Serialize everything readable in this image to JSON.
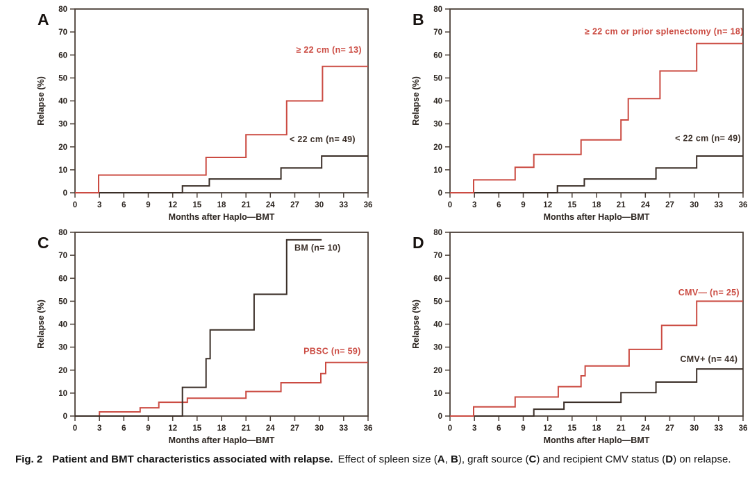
{
  "figure": {
    "background": "#ffffff"
  },
  "colors": {
    "red": "#cb4b42",
    "dark": "#3a2e27",
    "axis": "#4a3f37",
    "text": "#2a231e"
  },
  "caption": {
    "fig_label": "Fig. 2",
    "title": "Patient and BMT characteristics associated with relapse.",
    "segments": [
      {
        "text": "Effect of spleen size (",
        "bold": false
      },
      {
        "text": "A",
        "bold": true
      },
      {
        "text": ", ",
        "bold": false
      },
      {
        "text": "B",
        "bold": true
      },
      {
        "text": "), graft source (",
        "bold": false
      },
      {
        "text": "C",
        "bold": true
      },
      {
        "text": ") and recipient CMV status (",
        "bold": false
      },
      {
        "text": "D",
        "bold": true
      },
      {
        "text": ") on relapse.",
        "bold": false
      }
    ]
  },
  "chart_data": [
    {
      "panel_label": "A",
      "type": "line",
      "subtype": "step",
      "title": "",
      "xlabel": "Months after Haplo—BMT",
      "ylabel": "Relapse (%)",
      "xlim": [
        0,
        36
      ],
      "ylim": [
        0,
        80
      ],
      "xticks": [
        0,
        3,
        6,
        9,
        12,
        15,
        18,
        21,
        24,
        27,
        30,
        33,
        36
      ],
      "yticks": [
        0,
        10,
        20,
        30,
        40,
        50,
        60,
        70,
        80
      ],
      "grid": false,
      "series": [
        {
          "name": "< 22 cm (n= 49)",
          "color": "#3a2e27",
          "label_x": 30.4,
          "label_y": 22,
          "steps": [
            [
              0,
              0
            ],
            [
              13.2,
              3
            ],
            [
              16.5,
              6
            ],
            [
              25.3,
              10.8
            ],
            [
              30.3,
              16
            ],
            [
              36,
              16
            ]
          ]
        },
        {
          "name": "≥ 22 cm (n= 13)",
          "color": "#cb4b42",
          "label_x": 31.2,
          "label_y": 61,
          "steps": [
            [
              0,
              0
            ],
            [
              2.9,
              7.7
            ],
            [
              16.1,
              15.4
            ],
            [
              21,
              25.3
            ],
            [
              26,
              40
            ],
            [
              30.4,
              55
            ],
            [
              36,
              55
            ]
          ]
        }
      ]
    },
    {
      "panel_label": "B",
      "type": "line",
      "subtype": "step",
      "title": "",
      "xlabel": "Months after Haplo—BMT",
      "ylabel": "Relapse (%)",
      "xlim": [
        0,
        36
      ],
      "ylim": [
        0,
        80
      ],
      "xticks": [
        0,
        3,
        6,
        9,
        12,
        15,
        18,
        21,
        24,
        27,
        30,
        33,
        36
      ],
      "yticks": [
        0,
        10,
        20,
        30,
        40,
        50,
        60,
        70,
        80
      ],
      "grid": false,
      "series": [
        {
          "name": "< 22 cm (n= 49)",
          "color": "#3a2e27",
          "label_x": 31.7,
          "label_y": 22.5,
          "steps": [
            [
              0,
              0
            ],
            [
              13.2,
              3
            ],
            [
              16.5,
              6
            ],
            [
              25.3,
              10.8
            ],
            [
              30.3,
              16
            ],
            [
              36,
              16
            ]
          ]
        },
        {
          "name": "≥ 22 cm or prior splenectomy (n= 18)",
          "color": "#cb4b42",
          "label_x": 26.3,
          "label_y": 69,
          "steps": [
            [
              0,
              0
            ],
            [
              2.9,
              5.6
            ],
            [
              8,
              11.1
            ],
            [
              10.3,
              16.7
            ],
            [
              16.1,
              23
            ],
            [
              21,
              31.7
            ],
            [
              21.9,
              41
            ],
            [
              25.8,
              53
            ],
            [
              30.3,
              65
            ],
            [
              36,
              65
            ]
          ]
        }
      ]
    },
    {
      "panel_label": "C",
      "type": "line",
      "subtype": "step",
      "title": "",
      "xlabel": "Months after Haplo—BMT",
      "ylabel": "Relapse (%)",
      "xlim": [
        0,
        36
      ],
      "ylim": [
        0,
        80
      ],
      "xticks": [
        0,
        3,
        6,
        9,
        12,
        15,
        18,
        21,
        24,
        27,
        30,
        33,
        36
      ],
      "yticks": [
        0,
        10,
        20,
        30,
        40,
        50,
        60,
        70,
        80
      ],
      "grid": false,
      "series": [
        {
          "name": "PBSC (n= 59)",
          "color": "#cb4b42",
          "label_x": 31.6,
          "label_y": 27,
          "steps": [
            [
              0,
              0
            ],
            [
              3,
              1.8
            ],
            [
              8,
              3.6
            ],
            [
              10.3,
              6
            ],
            [
              13.8,
              7.8
            ],
            [
              21,
              10.7
            ],
            [
              25.3,
              14.5
            ],
            [
              30.2,
              18.5
            ],
            [
              30.8,
              23.3
            ],
            [
              36,
              23.3
            ]
          ]
        },
        {
          "name": "BM (n= 10)",
          "color": "#3a2e27",
          "label_x": 29.8,
          "label_y": 72,
          "steps": [
            [
              0,
              0
            ],
            [
              13.2,
              12.5
            ],
            [
              16.1,
              25
            ],
            [
              16.6,
              37.5
            ],
            [
              22,
              53
            ],
            [
              26,
              76.7
            ],
            [
              30.3,
              76.7
            ]
          ]
        }
      ]
    },
    {
      "panel_label": "D",
      "type": "line",
      "subtype": "step",
      "title": "",
      "xlabel": "Months after Haplo—BMT",
      "ylabel": "Relapse (%)",
      "xlim": [
        0,
        36
      ],
      "ylim": [
        0,
        80
      ],
      "xticks": [
        0,
        3,
        6,
        9,
        12,
        15,
        18,
        21,
        24,
        27,
        30,
        33,
        36
      ],
      "yticks": [
        0,
        10,
        20,
        30,
        40,
        50,
        60,
        70,
        80
      ],
      "grid": false,
      "series": [
        {
          "name": "CMV+  (n= 44)",
          "color": "#3a2e27",
          "label_x": 31.8,
          "label_y": 23.5,
          "steps": [
            [
              0,
              0
            ],
            [
              10.3,
              3
            ],
            [
              14,
              6
            ],
            [
              21,
              10.2
            ],
            [
              25.3,
              14.8
            ],
            [
              30.3,
              20.5
            ],
            [
              36,
              20.5
            ]
          ]
        },
        {
          "name": "CMV—  (n= 25)",
          "color": "#cb4b42",
          "label_x": 31.8,
          "label_y": 52.5,
          "steps": [
            [
              0,
              0
            ],
            [
              2.9,
              4
            ],
            [
              8,
              8.3
            ],
            [
              13.3,
              12.8
            ],
            [
              16.1,
              17.5
            ],
            [
              16.6,
              21.8
            ],
            [
              22,
              29
            ],
            [
              26,
              39.5
            ],
            [
              30.3,
              50
            ],
            [
              36,
              50
            ]
          ]
        }
      ]
    }
  ]
}
